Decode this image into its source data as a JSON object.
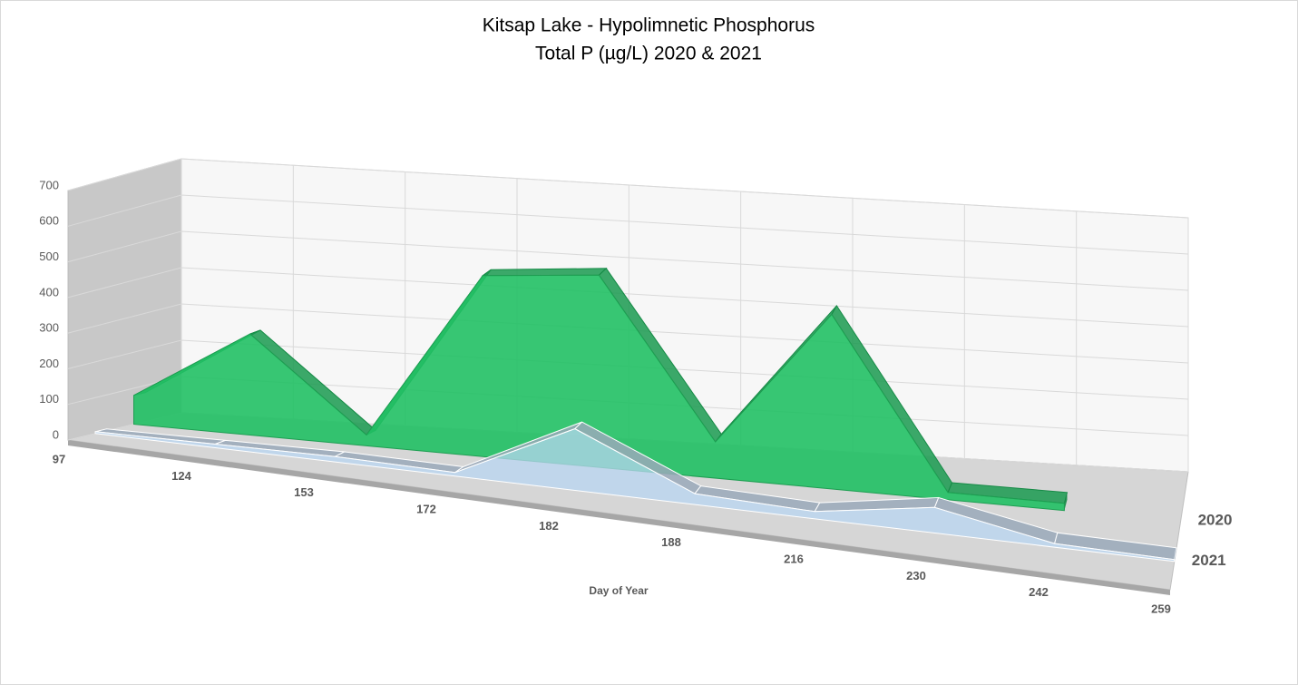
{
  "chart_data": {
    "type": "area3d",
    "title": "Kitsap Lake - Hypolimnetic Phosphorus",
    "subtitle": "Total P (µg/L) 2020 & 2021",
    "x_label": "Day of Year",
    "categories": [
      "97",
      "124",
      "153",
      "172",
      "182",
      "188",
      "216",
      "230",
      "242",
      "259"
    ],
    "series": [
      {
        "name": "2020",
        "color": "#21c064",
        "values": [
          80,
          280,
          30,
          500,
          530,
          100,
          480,
          20,
          20,
          null
        ]
      },
      {
        "name": "2021",
        "color": "#b8d6f2",
        "values": [
          5,
          10,
          15,
          10,
          170,
          30,
          20,
          70,
          10,
          5
        ]
      }
    ],
    "ylim": [
      0,
      700
    ],
    "yticks": [
      0,
      100,
      200,
      300,
      400,
      500,
      600,
      700
    ],
    "grid": true
  }
}
